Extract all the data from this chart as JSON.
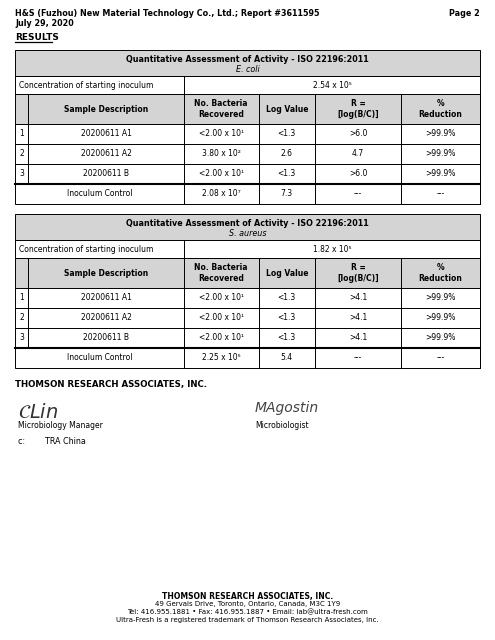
{
  "header_line1": "H&S (Fuzhou) New Material Technology Co., Ltd.; Report #3611595",
  "header_page": "Page 2",
  "header_line2": "July 29, 2020",
  "results_label": "RESULTS",
  "table1_title1": "Quantitative Assessment of Activity - ISO 22196:2011",
  "table1_title2": "E. coli",
  "table1_conc_label": "Concentration of starting inoculum",
  "table1_conc_value": "2.54 x 10⁵",
  "table2_title1": "Quantitative Assessment of Activity - ISO 22196:2011",
  "table2_title2": "S. aureus",
  "table2_conc_label": "Concentration of starting inoculum",
  "table2_conc_value": "1.82 x 10⁵",
  "col_headers": [
    "Sample Description",
    "No. Bacteria\nRecovered",
    "Log Value",
    "R =\n[log(B/C)]",
    "%\nReduction"
  ],
  "table1_rows": [
    [
      "1",
      "20200611 A1",
      "<2.00 x 10¹",
      "<1.3",
      ">6.0",
      ">99.9%"
    ],
    [
      "2",
      "20200611 A2",
      "3.80 x 10²",
      "2.6",
      "4.7",
      ">99.9%"
    ],
    [
      "3",
      "20200611 B",
      "<2.00 x 10¹",
      "<1.3",
      ">6.0",
      ">99.9%"
    ]
  ],
  "table1_control": [
    "Inoculum Control",
    "2.08 x 10⁷",
    "7.3",
    "---",
    "---"
  ],
  "table2_rows": [
    [
      "1",
      "20200611 A1",
      "<2.00 x 10¹",
      "<1.3",
      ">4.1",
      ">99.9%"
    ],
    [
      "2",
      "20200611 A2",
      "<2.00 x 10¹",
      "<1.3",
      ">4.1",
      ">99.9%"
    ],
    [
      "3",
      "20200611 B",
      "<2.00 x 10¹",
      "<1.3",
      ">4.1",
      ">99.9%"
    ]
  ],
  "table2_control": [
    "Inoculum Control",
    "2.25 x 10⁵",
    "5.4",
    "---",
    "---"
  ],
  "footer_company": "THOMSON RESEARCH ASSOCIATES, INC.",
  "footer_sig1_title": "Microbiology Manager",
  "footer_sig2_title": "Microbiologist",
  "footer_bottom_lines": [
    "THOMSON RESEARCH ASSOCIATES, INC.",
    "49 Gervais Drive, Toronto, Ontario, Canada, M3C 1Y9",
    "Tel: 416.955.1881 • Fax: 416.955.1887 • Email: lab@ultra-fresh.com",
    "Ultra-Fresh is a registered trademark of Thomson Research Associates, Inc."
  ],
  "cc_label": "c:        TRA China",
  "bg_color": "#ffffff",
  "table_header_bg": "#d4d4d4",
  "table_border_color": "#000000",
  "table_row_bg": "#ffffff"
}
